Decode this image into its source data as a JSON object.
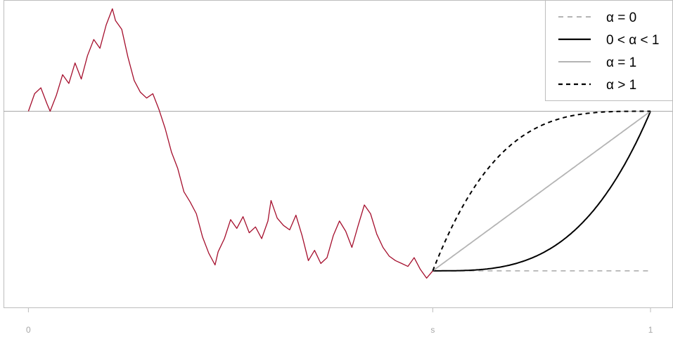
{
  "chart_data": {
    "type": "line",
    "title": "",
    "xlabel": "",
    "ylabel": "",
    "x_ticks": [
      {
        "value": 0,
        "label": "0"
      },
      {
        "value": 0.65,
        "label": "s"
      },
      {
        "value": 1,
        "label": "1"
      }
    ],
    "xlim": [
      -0.04,
      1.035
    ],
    "ylim": [
      -1.34,
      0.76
    ],
    "reference_line_y": 0,
    "grid": false,
    "legend_position": "top-right",
    "walk": {
      "color": "#a50f2d",
      "points": [
        [
          0,
          0
        ],
        [
          0.01,
          0.12
        ],
        [
          0.02,
          0.16
        ],
        [
          0.03,
          0.05
        ],
        [
          0.035,
          0.0
        ],
        [
          0.045,
          0.11
        ],
        [
          0.055,
          0.25
        ],
        [
          0.065,
          0.19
        ],
        [
          0.075,
          0.33
        ],
        [
          0.085,
          0.22
        ],
        [
          0.095,
          0.38
        ],
        [
          0.105,
          0.49
        ],
        [
          0.115,
          0.43
        ],
        [
          0.125,
          0.59
        ],
        [
          0.135,
          0.7
        ],
        [
          0.14,
          0.62
        ],
        [
          0.15,
          0.56
        ],
        [
          0.16,
          0.37
        ],
        [
          0.17,
          0.21
        ],
        [
          0.18,
          0.13
        ],
        [
          0.19,
          0.09
        ],
        [
          0.2,
          0.12
        ],
        [
          0.21,
          0.01
        ],
        [
          0.22,
          -0.12
        ],
        [
          0.23,
          -0.28
        ],
        [
          0.24,
          -0.39
        ],
        [
          0.25,
          -0.55
        ],
        [
          0.26,
          -0.62
        ],
        [
          0.27,
          -0.7
        ],
        [
          0.28,
          -0.86
        ],
        [
          0.29,
          -0.97
        ],
        [
          0.3,
          -1.05
        ],
        [
          0.305,
          -0.96
        ],
        [
          0.315,
          -0.87
        ],
        [
          0.325,
          -0.74
        ],
        [
          0.335,
          -0.8
        ],
        [
          0.345,
          -0.72
        ],
        [
          0.355,
          -0.83
        ],
        [
          0.365,
          -0.79
        ],
        [
          0.375,
          -0.87
        ],
        [
          0.385,
          -0.75
        ],
        [
          0.39,
          -0.61
        ],
        [
          0.4,
          -0.73
        ],
        [
          0.41,
          -0.78
        ],
        [
          0.42,
          -0.81
        ],
        [
          0.43,
          -0.71
        ],
        [
          0.44,
          -0.85
        ],
        [
          0.45,
          -1.02
        ],
        [
          0.46,
          -0.95
        ],
        [
          0.47,
          -1.04
        ],
        [
          0.48,
          -1.0
        ],
        [
          0.49,
          -0.85
        ],
        [
          0.5,
          -0.75
        ],
        [
          0.51,
          -0.82
        ],
        [
          0.52,
          -0.93
        ],
        [
          0.53,
          -0.78
        ],
        [
          0.54,
          -0.64
        ],
        [
          0.55,
          -0.7
        ],
        [
          0.56,
          -0.84
        ],
        [
          0.57,
          -0.93
        ],
        [
          0.58,
          -0.99
        ],
        [
          0.59,
          -1.02
        ],
        [
          0.6,
          -1.04
        ],
        [
          0.61,
          -1.06
        ],
        [
          0.62,
          -1.0
        ],
        [
          0.63,
          -1.08
        ],
        [
          0.64,
          -1.14
        ],
        [
          0.65,
          -1.09
        ]
      ]
    },
    "series": [
      {
        "name": "α = 0",
        "style": "dashed",
        "color": "#b4b4b4",
        "alpha": 0
      },
      {
        "name": "0 < α < 1",
        "style": "solid",
        "color": "#000000",
        "alpha": 0.5
      },
      {
        "name": "α = 1",
        "style": "solid",
        "color": "#b4b4b4",
        "alpha": 1
      },
      {
        "name": "α > 1",
        "style": "dashed",
        "color": "#000000",
        "alpha": 2
      }
    ]
  }
}
